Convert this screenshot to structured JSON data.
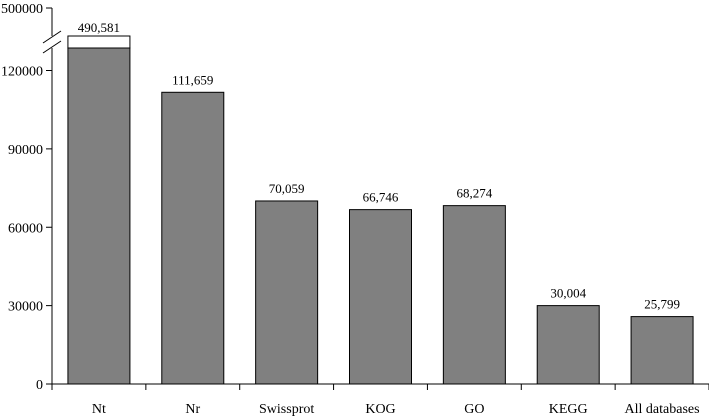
{
  "chart_data": {
    "type": "bar",
    "title": "",
    "xlabel": "",
    "ylabel": "",
    "categories": [
      "Nt",
      "Nr",
      "Swissprot",
      "KOG",
      "GO",
      "KEGG",
      "All databases"
    ],
    "values": [
      490581,
      111659,
      70059,
      66746,
      68274,
      30004,
      25799
    ],
    "value_labels": [
      "490,581",
      "111,659",
      "70,059",
      "66,746",
      "68,274",
      "30,004",
      "25,799"
    ],
    "ylim": [
      0,
      500000
    ],
    "y_axis_break": {
      "lower_max": 130000,
      "upper_min": 490000
    },
    "yticks": [
      0,
      30000,
      60000,
      90000,
      120000,
      500000
    ],
    "ytick_labels": [
      "0",
      "30000",
      "60000",
      "90000",
      "120000",
      "500000"
    ],
    "grid": false,
    "bar_color": "#808080",
    "bar_edge_color": "#000000"
  }
}
